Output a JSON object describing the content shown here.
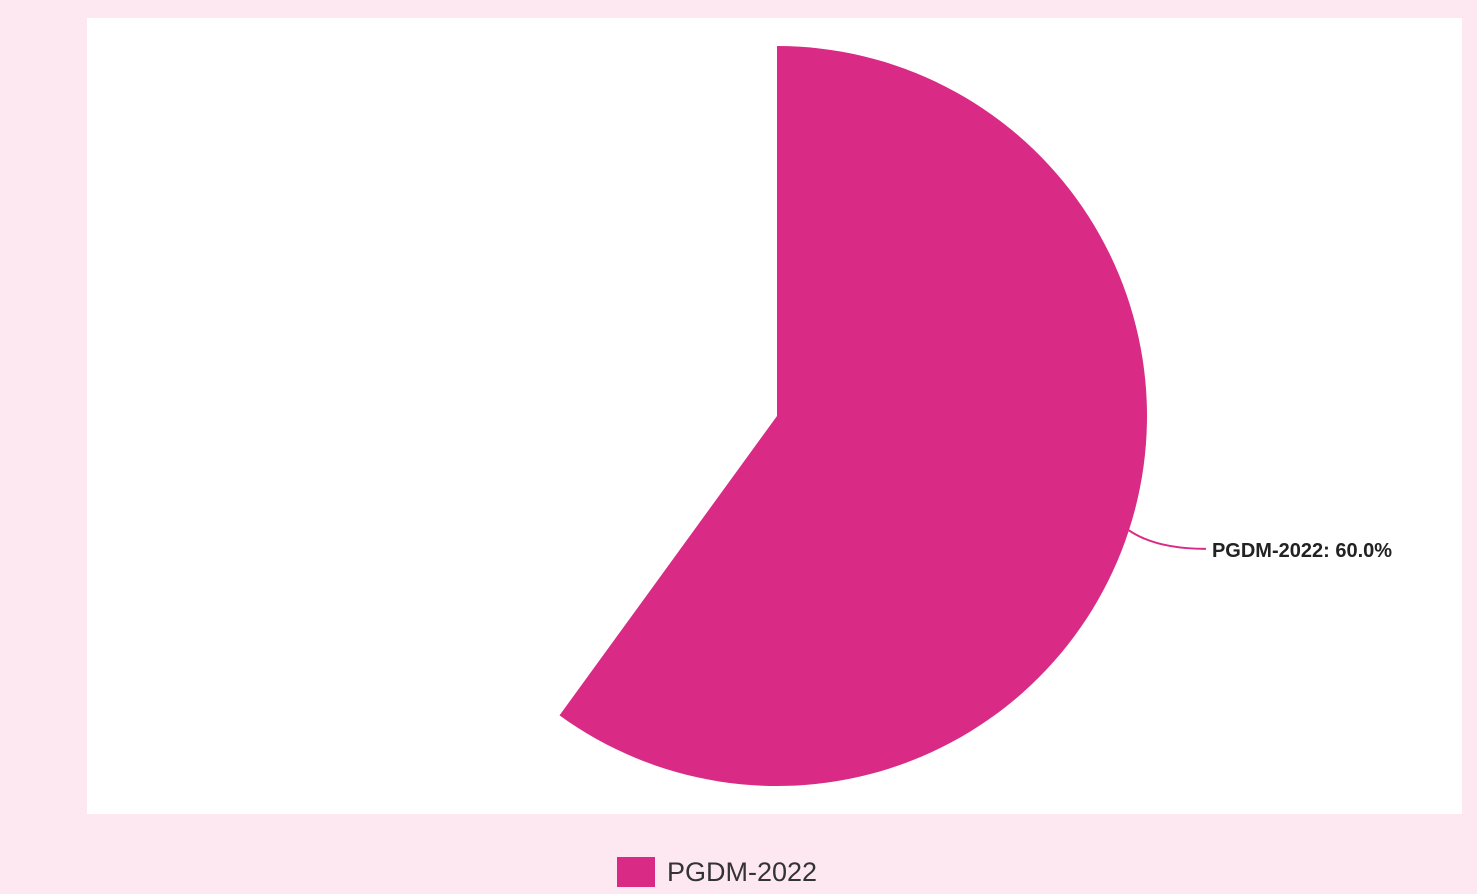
{
  "chart_data": {
    "type": "pie",
    "categories": [
      "PGDM-2022"
    ],
    "values": [
      60
    ],
    "value_labels": [
      "PGDM-2022: 60.0%"
    ],
    "colors": [
      "#d92a85"
    ],
    "legend": "bottom"
  }
}
